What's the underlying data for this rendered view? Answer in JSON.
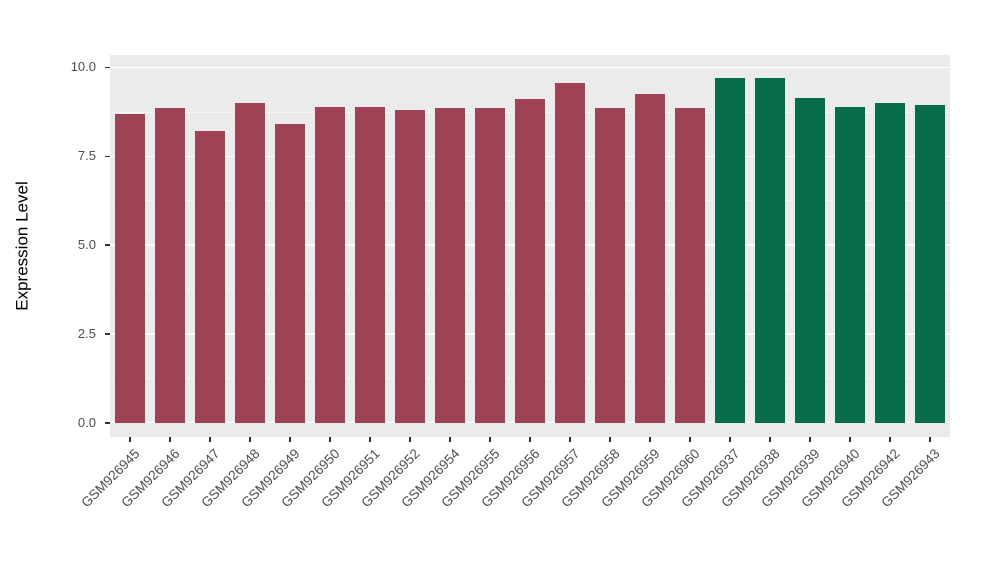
{
  "figure": {
    "background": "#FFFFFF"
  },
  "chart_data": {
    "type": "bar",
    "title": "",
    "xlabel": "",
    "ylabel": "Expression Level",
    "categories": [
      "GSM926945",
      "GSM926946",
      "GSM926947",
      "GSM926948",
      "GSM926949",
      "GSM926950",
      "GSM926951",
      "GSM926952",
      "GSM926954",
      "GSM926955",
      "GSM926956",
      "GSM926957",
      "GSM926958",
      "GSM926959",
      "GSM926960",
      "GSM926937",
      "GSM926938",
      "GSM926939",
      "GSM926940",
      "GSM926942",
      "GSM926943"
    ],
    "values": [
      8.7,
      8.85,
      8.2,
      9.0,
      8.4,
      8.9,
      8.9,
      8.8,
      8.85,
      8.85,
      9.1,
      9.55,
      8.85,
      9.25,
      8.85,
      9.7,
      9.7,
      9.15,
      8.9,
      9.0,
      8.95
    ],
    "groups": [
      "red",
      "red",
      "red",
      "red",
      "red",
      "red",
      "red",
      "red",
      "red",
      "red",
      "red",
      "red",
      "red",
      "red",
      "red",
      "green",
      "green",
      "green",
      "green",
      "green",
      "green"
    ],
    "group_colors": {
      "red": "#9E4355",
      "green": "#066C4B"
    },
    "ylim": [
      -0.4,
      10.35
    ],
    "yticks": [
      0.0,
      2.5,
      5.0,
      7.5,
      10.0
    ],
    "ytick_labels": [
      "0.0",
      "2.5",
      "5.0",
      "7.5",
      "10.0"
    ],
    "minor_ticks": [
      1.25,
      3.75,
      6.25,
      8.75
    ],
    "bar_width_fraction": 0.75,
    "panel_bg": "#EBEBEB",
    "grid_color": "#FFFFFF",
    "tick_color": "#333333",
    "axis_text_color": "#4D4D4D",
    "legend": "none",
    "grid": "on"
  }
}
